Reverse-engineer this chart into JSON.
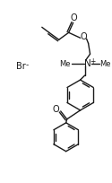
{
  "bg_color": "#ffffff",
  "line_color": "#1a1a1a",
  "lw": 1.0,
  "figsize": [
    1.25,
    2.04
  ],
  "dpi": 100,
  "xlim": [
    0,
    125
  ],
  "ylim": [
    0,
    204
  ],
  "text_fs": 6.5,
  "br_text": "Br",
  "br_sup": "-",
  "n_text": "N",
  "n_sup": "+",
  "o_text": "O"
}
